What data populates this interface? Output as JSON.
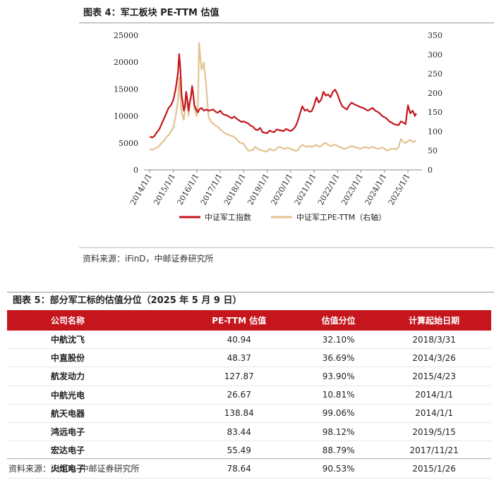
{
  "figure1": {
    "title": "图表 4：军工板块 PE-TTM 估值",
    "source": "资料来源：iFinD，中邮证券研究所"
  },
  "chart_data": {
    "type": "line",
    "title": "图表 4：军工板块 PE-TTM 估值",
    "x_ticks": [
      "2014/1/1",
      "2015/1/1",
      "2016/1/1",
      "2017/1/1",
      "2018/1/1",
      "2019/1/1",
      "2020/1/1",
      "2021/1/1",
      "2022/1/1",
      "2023/1/1",
      "2024/1/1",
      "2025/1/1"
    ],
    "y_left": {
      "ticks": [
        0,
        5000,
        10000,
        15000,
        20000,
        25000
      ],
      "ylim": [
        0,
        25000
      ]
    },
    "y_right": {
      "ticks": [
        0,
        50,
        100,
        150,
        200,
        250,
        300,
        350
      ],
      "ylim": [
        0,
        350
      ]
    },
    "legend_position": "bottom",
    "colors": {
      "index": "#c4161c",
      "pe": "#e3c290"
    },
    "series": [
      {
        "name": "中证军工指数",
        "axis": "left",
        "x": [
          2014.0,
          2014.1,
          2014.2,
          2014.3,
          2014.4,
          2014.5,
          2014.6,
          2014.7,
          2014.8,
          2014.9,
          2015.0,
          2015.1,
          2015.2,
          2015.25,
          2015.3,
          2015.35,
          2015.4,
          2015.45,
          2015.5,
          2015.55,
          2015.6,
          2015.65,
          2015.7,
          2015.75,
          2015.8,
          2015.85,
          2015.9,
          2015.95,
          2016.0,
          2016.05,
          2016.1,
          2016.2,
          2016.3,
          2016.4,
          2016.5,
          2016.6,
          2016.7,
          2016.8,
          2016.9,
          2017.0,
          2017.1,
          2017.2,
          2017.3,
          2017.4,
          2017.5,
          2017.6,
          2017.7,
          2017.8,
          2017.9,
          2018.0,
          2018.1,
          2018.2,
          2018.3,
          2018.4,
          2018.5,
          2018.6,
          2018.7,
          2018.8,
          2018.9,
          2019.0,
          2019.1,
          2019.2,
          2019.3,
          2019.4,
          2019.5,
          2019.6,
          2019.7,
          2019.8,
          2019.9,
          2020.0,
          2020.1,
          2020.2,
          2020.3,
          2020.4,
          2020.5,
          2020.6,
          2020.7,
          2020.8,
          2020.9,
          2021.0,
          2021.1,
          2021.2,
          2021.3,
          2021.4,
          2021.5,
          2021.6,
          2021.7,
          2021.8,
          2021.9,
          2022.0,
          2022.1,
          2022.2,
          2022.3,
          2022.4,
          2022.5,
          2022.6,
          2022.7,
          2022.8,
          2022.9,
          2023.0,
          2023.1,
          2023.2,
          2023.3,
          2023.4,
          2023.5,
          2023.6,
          2023.7,
          2023.8,
          2023.9,
          2024.0,
          2024.1,
          2024.2,
          2024.3,
          2024.4,
          2024.5,
          2024.6,
          2024.7,
          2024.8,
          2024.9,
          2025.0,
          2025.1,
          2025.2,
          2025.3,
          2025.35
        ],
        "values": [
          6200,
          6000,
          6300,
          7000,
          7500,
          8500,
          9500,
          10500,
          11500,
          12000,
          13000,
          15000,
          18000,
          21500,
          19000,
          14000,
          12500,
          11000,
          12000,
          14500,
          13000,
          11000,
          12500,
          13500,
          15500,
          14000,
          12000,
          11500,
          11000,
          10700,
          11200,
          11500,
          11000,
          11200,
          11000,
          11100,
          11200,
          10800,
          10600,
          11000,
          10400,
          10200,
          10100,
          9800,
          9600,
          9900,
          9500,
          9200,
          8900,
          9000,
          8800,
          8600,
          8200,
          8000,
          7500,
          7400,
          7800,
          7000,
          6900,
          6800,
          7300,
          7100,
          7000,
          7500,
          7400,
          7300,
          7200,
          7600,
          7400,
          7200,
          7500,
          8000,
          9000,
          10500,
          11800,
          11000,
          11200,
          10800,
          10900,
          12000,
          13500,
          12500,
          13000,
          14500,
          13800,
          14000,
          13500,
          14500,
          14900,
          14000,
          12800,
          11800,
          11500,
          11200,
          12000,
          12500,
          12200,
          12000,
          11800,
          11600,
          11500,
          11200,
          11000,
          11300,
          11500,
          11000,
          10800,
          10500,
          10000,
          9800,
          9500,
          9000,
          8800,
          8500,
          8400,
          8300,
          9000,
          8800,
          8500,
          12000,
          10500,
          11000,
          10000,
          10500
        ]
      },
      {
        "name": "中证军工PE-TTM（右轴）",
        "axis": "right",
        "x": [
          2014.0,
          2014.1,
          2014.2,
          2014.3,
          2014.4,
          2014.5,
          2014.6,
          2014.7,
          2014.8,
          2014.9,
          2015.0,
          2015.1,
          2015.2,
          2015.25,
          2015.3,
          2015.35,
          2015.4,
          2015.45,
          2015.5,
          2015.55,
          2015.6,
          2015.65,
          2015.7,
          2015.75,
          2015.8,
          2015.85,
          2015.9,
          2015.95,
          2016.0,
          2016.05,
          2016.1,
          2016.2,
          2016.3,
          2016.4,
          2016.5,
          2016.6,
          2016.7,
          2016.8,
          2016.9,
          2017.0,
          2017.1,
          2017.2,
          2017.3,
          2017.4,
          2017.5,
          2017.6,
          2017.7,
          2017.8,
          2017.9,
          2018.0,
          2018.1,
          2018.2,
          2018.3,
          2018.4,
          2018.5,
          2018.6,
          2018.7,
          2018.8,
          2018.9,
          2019.0,
          2019.1,
          2019.2,
          2019.3,
          2019.4,
          2019.5,
          2019.6,
          2019.7,
          2019.8,
          2019.9,
          2020.0,
          2020.1,
          2020.2,
          2020.3,
          2020.4,
          2020.5,
          2020.6,
          2020.7,
          2020.8,
          2020.9,
          2021.0,
          2021.1,
          2021.2,
          2021.3,
          2021.4,
          2021.5,
          2021.6,
          2021.7,
          2021.8,
          2021.9,
          2022.0,
          2022.1,
          2022.2,
          2022.3,
          2022.4,
          2022.5,
          2022.6,
          2022.7,
          2022.8,
          2022.9,
          2023.0,
          2023.1,
          2023.2,
          2023.3,
          2023.4,
          2023.5,
          2023.6,
          2023.7,
          2023.8,
          2023.9,
          2024.0,
          2024.1,
          2024.2,
          2024.3,
          2024.4,
          2024.5,
          2024.6,
          2024.7,
          2024.8,
          2024.9,
          2025.0,
          2025.1,
          2025.2,
          2025.3,
          2025.35
        ],
        "values": [
          55,
          52,
          55,
          58,
          62,
          70,
          75,
          85,
          90,
          100,
          110,
          140,
          180,
          240,
          200,
          150,
          140,
          130,
          160,
          200,
          175,
          140,
          170,
          190,
          220,
          200,
          160,
          150,
          140,
          170,
          330,
          260,
          280,
          220,
          140,
          125,
          120,
          115,
          112,
          105,
          100,
          95,
          92,
          90,
          88,
          85,
          80,
          72,
          70,
          68,
          58,
          50,
          50,
          52,
          60,
          55,
          52,
          50,
          48,
          48,
          55,
          52,
          50,
          55,
          60,
          58,
          55,
          56,
          57,
          55,
          52,
          50,
          50,
          60,
          65,
          62,
          60,
          62,
          60,
          62,
          65,
          60,
          62,
          68,
          70,
          65,
          62,
          64,
          66,
          62,
          60,
          56,
          55,
          56,
          60,
          62,
          60,
          58,
          56,
          55,
          58,
          60,
          56,
          58,
          60,
          57,
          55,
          56,
          58,
          55,
          50,
          52,
          55,
          55,
          53,
          60,
          80,
          73,
          70,
          75,
          78,
          72,
          75,
          75
        ]
      }
    ]
  },
  "figure2": {
    "title": "图表 5：部分军工标的估值分位（2025 年 5 月 9 日）",
    "source": "资料来源：iFinD，中邮证券研究所",
    "columns": [
      "公司名称",
      "PE-TTM 估值",
      "估值分位",
      "计算起始日期"
    ],
    "rows": [
      [
        "中航沈飞",
        "40.94",
        "32.10%",
        "2018/3/31"
      ],
      [
        "中直股份",
        "48.37",
        "36.69%",
        "2014/3/26"
      ],
      [
        "航发动力",
        "127.87",
        "93.90%",
        "2015/4/23"
      ],
      [
        "中航光电",
        "26.67",
        "10.81%",
        "2014/1/1"
      ],
      [
        "航天电器",
        "138.84",
        "99.06%",
        "2014/1/1"
      ],
      [
        "鸿远电子",
        "83.44",
        "98.12%",
        "2019/5/15"
      ],
      [
        "宏达电子",
        "55.49",
        "88.79%",
        "2017/11/21"
      ],
      [
        "火炬电子",
        "78.64",
        "90.53%",
        "2015/1/26"
      ]
    ]
  }
}
